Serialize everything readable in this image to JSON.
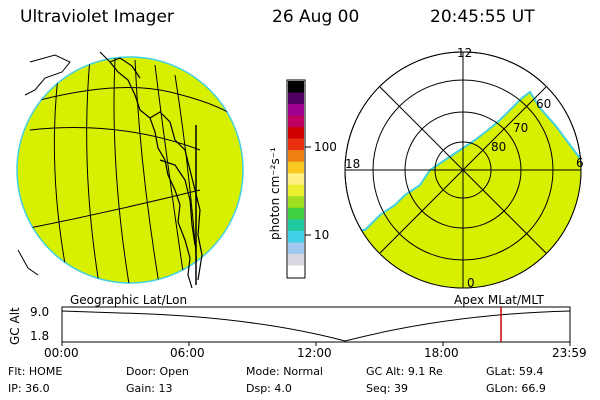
{
  "header": {
    "instrument": "Ultraviolet Imager",
    "date": "26 Aug 00",
    "time": "20:45:55 UT"
  },
  "left_map": {
    "caption": "Geographic Lat/Lon",
    "fill_color": "#d6f000",
    "edge_color": "#44d0e0"
  },
  "right_map": {
    "caption": "Apex MLat/MLT",
    "mlt_labels": {
      "top": "12",
      "left": "18",
      "right": "6",
      "bottom": "0"
    },
    "mlat_labels": [
      "60",
      "70",
      "80"
    ],
    "fill_color": "#d6f000"
  },
  "colorbar": {
    "unit_label": "photon cm⁻²s⁻¹",
    "tick_labels": [
      "100",
      "10"
    ],
    "colors": [
      "#ffffff",
      "#d8d8e0",
      "#a0c8f0",
      "#40d0e8",
      "#20c8a0",
      "#40d040",
      "#a0e020",
      "#e8f030",
      "#fff080",
      "#f8c820",
      "#f08010",
      "#e83010",
      "#d00000",
      "#c00060",
      "#a00090",
      "#500060",
      "#000000"
    ]
  },
  "altitude_plot": {
    "ylabel": "GC Alt",
    "y_top": "9.0",
    "y_bottom": "1.8",
    "time_ticks": [
      "00:00",
      "06:00",
      "12:00",
      "18:00",
      "23:59"
    ],
    "marker_color": "#cc0000"
  },
  "status": {
    "row1": [
      {
        "label": "Flt:",
        "value": "HOME"
      },
      {
        "label": "Door:",
        "value": "Open"
      },
      {
        "label": "Mode:",
        "value": "Normal"
      },
      {
        "label": "GC Alt:",
        "value": "9.1 Re"
      },
      {
        "label": "GLat:",
        "value": "59.4"
      }
    ],
    "row2": [
      {
        "label": "IP:",
        "value": "36.0"
      },
      {
        "label": "Gain:",
        "value": "13"
      },
      {
        "label": "Dsp:",
        "value": "4.0"
      },
      {
        "label": "Seq:",
        "value": "39"
      },
      {
        "label": "GLon:",
        "value": "66.9"
      }
    ]
  }
}
